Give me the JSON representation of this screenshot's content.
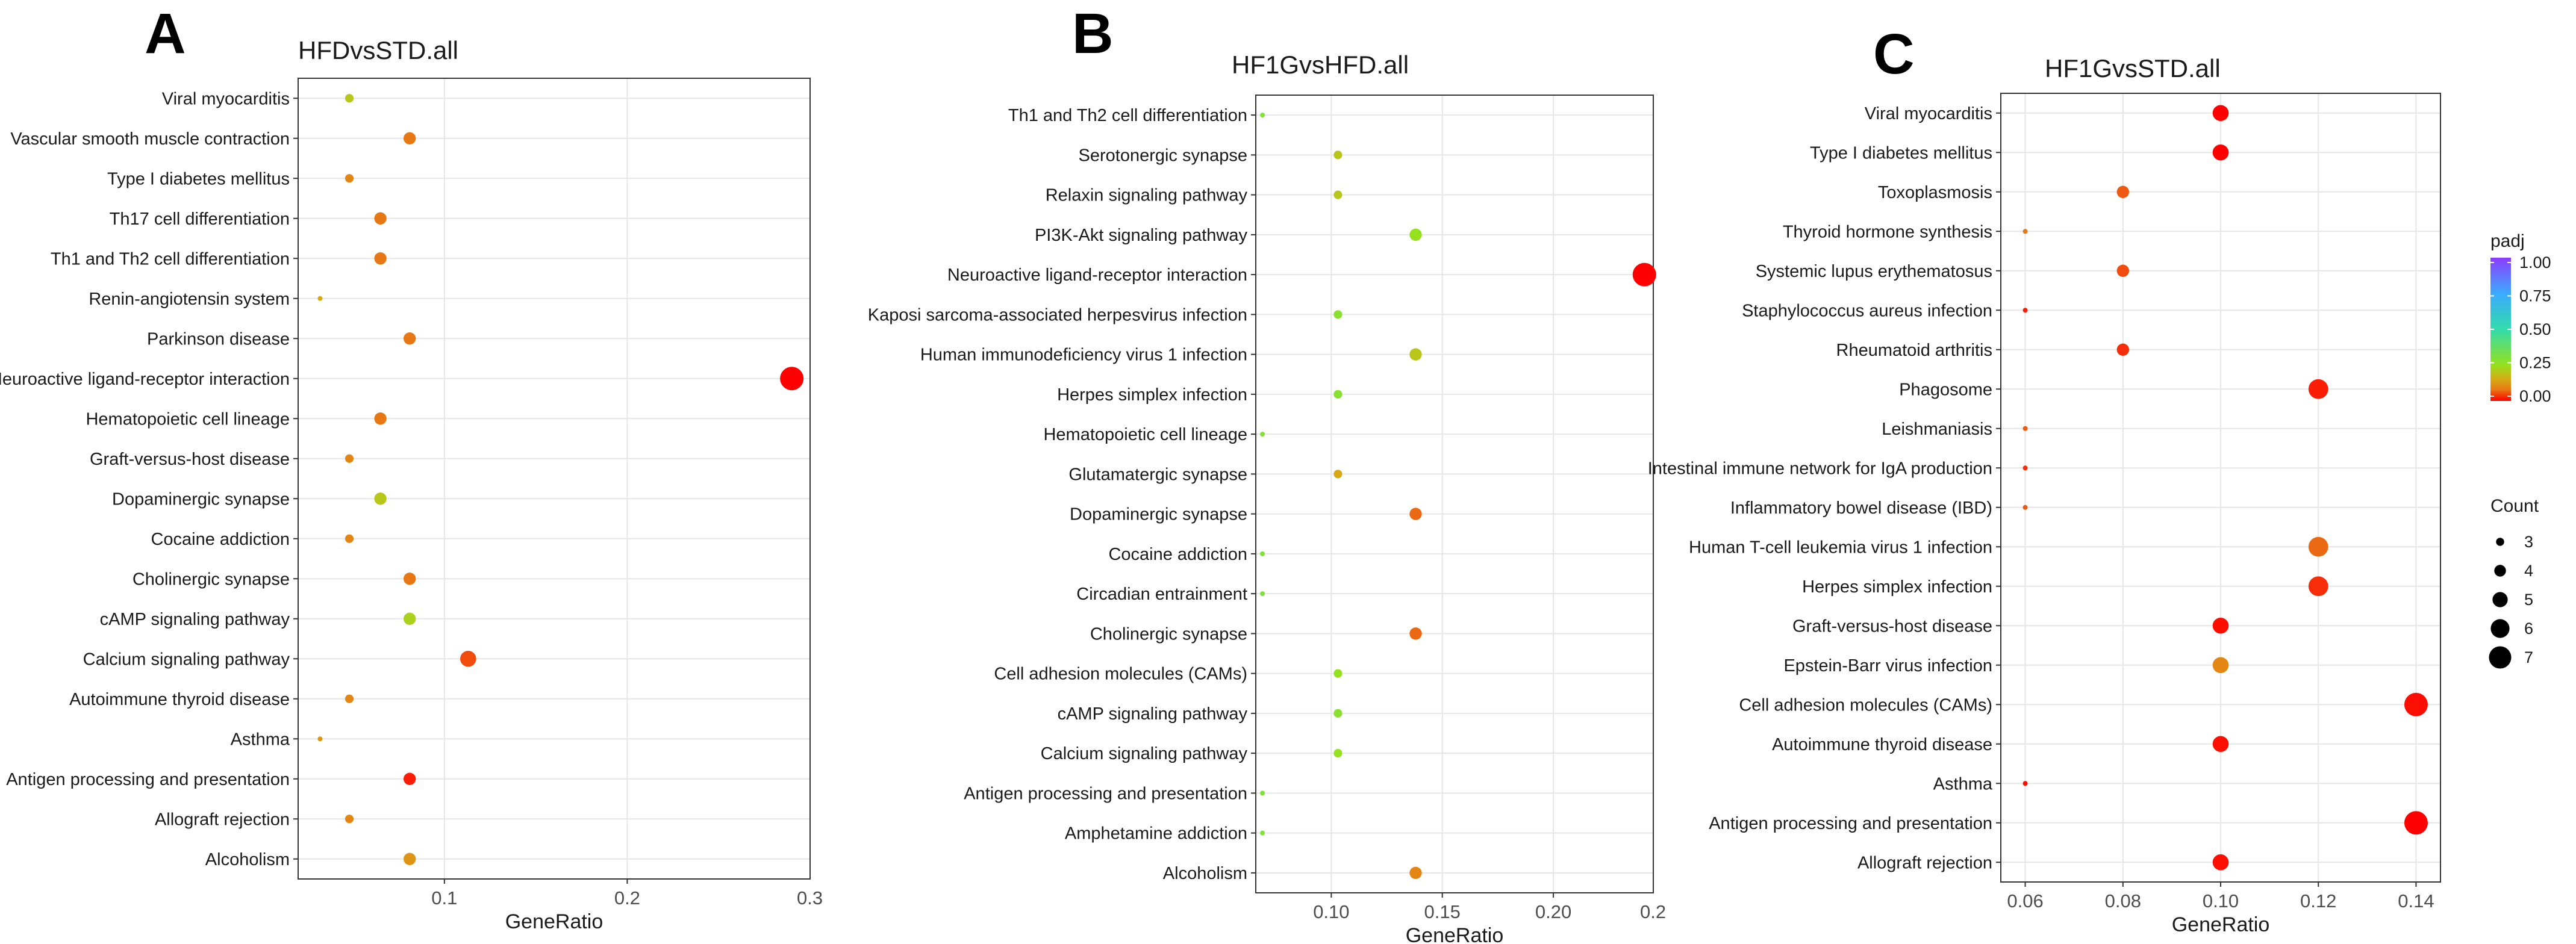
{
  "chart_data": [
    {
      "panel": "A",
      "type": "scatter",
      "title": "HFDvsSTD.all",
      "xlabel": "GeneRatio",
      "ylabel": "",
      "xlim": [
        0.02,
        0.3
      ],
      "xticks": [
        0.1,
        0.2
      ],
      "xtick_labels": [
        "0.1",
        "0.2"
      ],
      "x_clipped_label": "0.3",
      "categories": [
        "Viral myocarditis",
        "Vascular smooth muscle contraction",
        "Type I diabetes mellitus",
        "Th17 cell differentiation",
        "Th1 and Th2 cell differentiation",
        "Renin-angiotensin system",
        "Parkinson disease",
        "Neuroactive ligand-receptor interaction",
        "Hematopoietic cell lineage",
        "Graft-versus-host disease",
        "Dopaminergic synapse",
        "Cocaine addiction",
        "Cholinergic synapse",
        "cAMP signaling pathway",
        "Calcium signaling pathway",
        "Autoimmune thyroid disease",
        "Asthma",
        "Antigen processing and presentation",
        "Allograft rejection",
        "Alcoholism"
      ],
      "x": [
        0.048,
        0.081,
        0.048,
        0.065,
        0.065,
        0.032,
        0.081,
        0.29,
        0.065,
        0.048,
        0.065,
        0.048,
        0.081,
        0.081,
        0.113,
        0.048,
        0.032,
        0.081,
        0.048,
        0.081
      ],
      "count": [
        3,
        4,
        3,
        4,
        4,
        2,
        4,
        7,
        4,
        3,
        4,
        3,
        4,
        4,
        5,
        3,
        2,
        4,
        3,
        4
      ],
      "padj": [
        0.2,
        0.08,
        0.1,
        0.08,
        0.08,
        0.15,
        0.08,
        0.0,
        0.08,
        0.1,
        0.2,
        0.1,
        0.08,
        0.22,
        0.05,
        0.1,
        0.12,
        0.02,
        0.1,
        0.12
      ]
    },
    {
      "panel": "B",
      "type": "scatter",
      "title": "HF1GvsHFD.all",
      "xlabel": "GeneRatio",
      "ylabel": "",
      "xlim": [
        0.066,
        0.245
      ],
      "xticks": [
        0.1,
        0.15,
        0.2
      ],
      "xtick_labels": [
        "0.10",
        "0.15",
        "0.20"
      ],
      "x_clipped_label": "0.2",
      "categories": [
        "Th1 and Th2 cell differentiation",
        "Serotonergic synapse",
        "Relaxin signaling pathway",
        "PI3K-Akt signaling pathway",
        "Neuroactive ligand-receptor interaction",
        "Kaposi sarcoma-associated herpesvirus infection",
        "Human immunodeficiency virus 1 infection",
        "Herpes simplex infection",
        "Hematopoietic cell lineage",
        "Glutamatergic synapse",
        "Dopaminergic synapse",
        "Cocaine addiction",
        "Circadian entrainment",
        "Cholinergic synapse",
        "Cell adhesion molecules (CAMs)",
        "cAMP signaling pathway",
        "Calcium signaling pathway",
        "Antigen processing and presentation",
        "Amphetamine addiction",
        "Alcoholism"
      ],
      "x": [
        0.069,
        0.103,
        0.103,
        0.138,
        0.241,
        0.103,
        0.138,
        0.103,
        0.069,
        0.103,
        0.138,
        0.069,
        0.069,
        0.138,
        0.103,
        0.103,
        0.103,
        0.069,
        0.069,
        0.138
      ],
      "count": [
        2,
        3,
        3,
        4,
        7,
        3,
        4,
        3,
        2,
        3,
        4,
        2,
        2,
        4,
        3,
        3,
        3,
        2,
        2,
        4
      ],
      "padj": [
        0.3,
        0.2,
        0.2,
        0.25,
        0.0,
        0.28,
        0.2,
        0.28,
        0.3,
        0.15,
        0.07,
        0.3,
        0.3,
        0.07,
        0.25,
        0.28,
        0.25,
        0.3,
        0.3,
        0.1
      ]
    },
    {
      "panel": "C",
      "type": "scatter",
      "title": "HF1GvsSTD.all",
      "xlabel": "GeneRatio",
      "ylabel": "",
      "xlim": [
        0.055,
        0.145
      ],
      "xticks": [
        0.06,
        0.08,
        0.1,
        0.12,
        0.14
      ],
      "xtick_labels": [
        "0.06",
        "0.08",
        "0.10",
        "0.12",
        "0.14"
      ],
      "categories": [
        "Viral myocarditis",
        "Type I diabetes mellitus",
        "Toxoplasmosis",
        "Thyroid hormone synthesis",
        "Systemic lupus erythematosus",
        "Staphylococcus aureus infection",
        "Rheumatoid arthritis",
        "Phagosome",
        "Leishmaniasis",
        "Intestinal immune network for IgA production",
        "Inflammatory bowel disease (IBD)",
        "Human T-cell leukemia virus 1 infection",
        "Herpes simplex infection",
        "Graft-versus-host disease",
        "Epstein-Barr virus infection",
        "Cell adhesion molecules (CAMs)",
        "Autoimmune thyroid disease",
        "Asthma",
        "Antigen processing and presentation",
        "Allograft rejection"
      ],
      "x": [
        0.1,
        0.1,
        0.08,
        0.06,
        0.08,
        0.06,
        0.08,
        0.12,
        0.06,
        0.06,
        0.06,
        0.12,
        0.12,
        0.1,
        0.1,
        0.14,
        0.1,
        0.06,
        0.14,
        0.1
      ],
      "count": [
        5,
        5,
        4,
        2,
        4,
        2,
        4,
        6,
        2,
        2,
        2,
        6,
        6,
        5,
        5,
        7,
        5,
        2,
        7,
        5
      ],
      "padj": [
        0.0,
        0.0,
        0.06,
        0.08,
        0.05,
        0.02,
        0.03,
        0.02,
        0.06,
        0.03,
        0.06,
        0.07,
        0.03,
        0.01,
        0.1,
        0.01,
        0.01,
        0.01,
        0.0,
        0.01
      ]
    }
  ],
  "legend": {
    "color_title": "padj",
    "color_ticks": [
      "1.00",
      "0.75",
      "0.50",
      "0.25",
      "0.00"
    ],
    "size_title": "Count",
    "size_ticks": [
      "3",
      "4",
      "5",
      "6",
      "7"
    ]
  }
}
